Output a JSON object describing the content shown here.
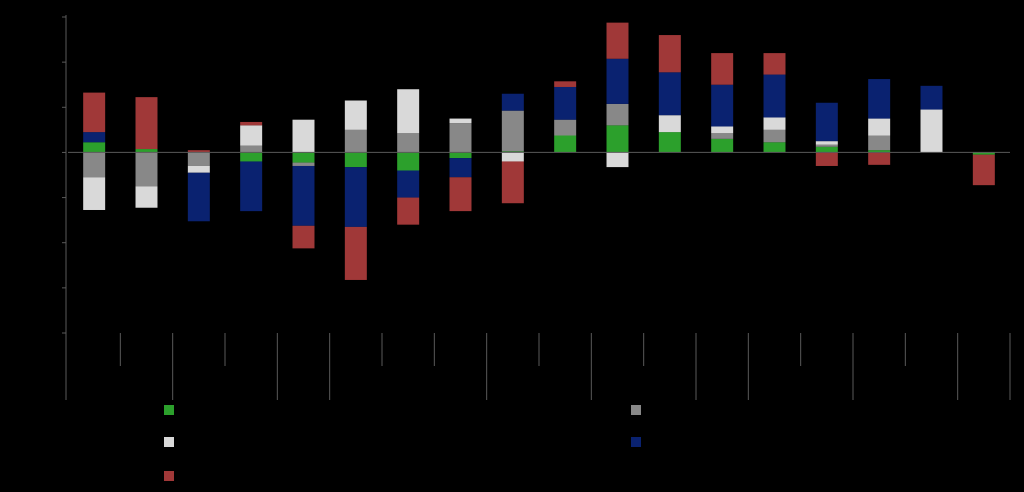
{
  "chart_data": {
    "type": "bar",
    "stacked": true,
    "background": "#000000",
    "title": "",
    "xlabel": "",
    "ylabel": "",
    "ylim": [
      -8,
      6
    ],
    "y_ticks": [
      -8,
      -6,
      -4,
      -2,
      0,
      2,
      4,
      6
    ],
    "grid": false,
    "legend_position": "bottom",
    "categories": [
      "",
      "",
      "",
      "",
      "",
      "",
      "",
      "",
      "",
      "",
      "",
      "",
      "",
      "",
      "",
      "",
      "",
      ""
    ],
    "category_groups": [
      2,
      2,
      1,
      3,
      2,
      2,
      1,
      2,
      2,
      1
    ],
    "series": [
      {
        "color": "#2ca02c",
        "values": [
          0.45,
          0.15,
          0.0,
          -0.4,
          -0.45,
          -0.65,
          -0.8,
          -0.25,
          0.05,
          0.75,
          1.2,
          0.9,
          0.6,
          0.45,
          0.25,
          0.1,
          0.0,
          -0.1
        ]
      },
      {
        "color": "#888888",
        "values": [
          -1.1,
          -1.5,
          -0.6,
          0.3,
          -0.15,
          1.0,
          0.85,
          1.3,
          1.8,
          0.7,
          0.95,
          0.0,
          0.25,
          0.55,
          0.1,
          0.65,
          0.0,
          0.0
        ]
      },
      {
        "color": "#d9d9d9",
        "values": [
          -1.45,
          -0.95,
          -0.3,
          0.9,
          1.45,
          1.3,
          1.95,
          0.2,
          -0.4,
          0.0,
          -0.65,
          0.75,
          0.3,
          0.55,
          0.15,
          0.75,
          1.9,
          0.0
        ]
      },
      {
        "color": "#0a2270",
        "values": [
          0.45,
          0.0,
          -2.15,
          -2.2,
          -2.65,
          -2.65,
          -1.2,
          -0.85,
          0.75,
          1.45,
          2.0,
          1.9,
          1.85,
          1.9,
          1.7,
          1.75,
          1.05,
          0.0
        ]
      },
      {
        "color": "#a03838",
        "values": [
          1.75,
          2.3,
          0.1,
          0.15,
          -1.0,
          -2.35,
          -1.2,
          -1.5,
          -1.85,
          0.25,
          1.6,
          1.65,
          1.4,
          0.95,
          -0.6,
          -0.55,
          0.0,
          -1.35
        ]
      }
    ]
  },
  "legend": {
    "items": [
      {
        "label": "",
        "color": "#2ca02c"
      },
      {
        "label": "",
        "color": "#888888"
      },
      {
        "label": "",
        "color": "#d9d9d9"
      },
      {
        "label": "",
        "color": "#0a2270"
      },
      {
        "label": "",
        "color": "#a03838"
      }
    ]
  }
}
